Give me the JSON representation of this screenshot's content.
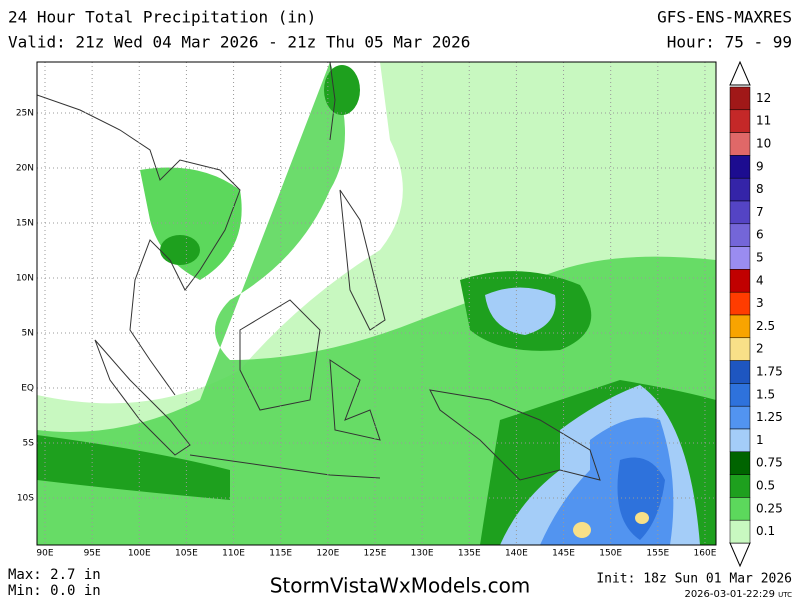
{
  "header": {
    "title": "24 Hour Total Precipitation (in)",
    "valid": "Valid: 21z Wed 04 Mar 2026 - 21z Thu 05 Mar 2026",
    "model": "GFS-ENS-MAXRES",
    "hours": "Hour: 75 - 99"
  },
  "map": {
    "lat_labels": [
      "25N",
      "20N",
      "15N",
      "10N",
      "5N",
      "EQ",
      "5S",
      "10S"
    ],
    "lon_labels": [
      "90E",
      "95E",
      "100E",
      "105E",
      "110E",
      "115E",
      "120E",
      "125E",
      "130E",
      "135E",
      "140E",
      "145E",
      "150E",
      "155E",
      "160E"
    ]
  },
  "legend": {
    "items": [
      {
        "label": "12",
        "color": "#a01818"
      },
      {
        "label": "11",
        "color": "#c42828"
      },
      {
        "label": "10",
        "color": "#e06868"
      },
      {
        "label": "9",
        "color": "#1c0c90"
      },
      {
        "label": "8",
        "color": "#3424a8"
      },
      {
        "label": "7",
        "color": "#5444c4"
      },
      {
        "label": "6",
        "color": "#7466d8"
      },
      {
        "label": "5",
        "color": "#9a8cf0"
      },
      {
        "label": "4",
        "color": "#c00000"
      },
      {
        "label": "3",
        "color": "#ff3c00"
      },
      {
        "label": "2.5",
        "color": "#f8a400"
      },
      {
        "label": "2",
        "color": "#f8e088"
      },
      {
        "label": "1.75",
        "color": "#1e56c0"
      },
      {
        "label": "1.5",
        "color": "#2e72dc"
      },
      {
        "label": "1.25",
        "color": "#5294f0"
      },
      {
        "label": "1",
        "color": "#a4cdf8"
      },
      {
        "label": "0.75",
        "color": "#006400"
      },
      {
        "label": "0.5",
        "color": "#1ea01e"
      },
      {
        "label": "0.25",
        "color": "#5cd85c"
      },
      {
        "label": "0.1",
        "color": "#c8f8c0"
      }
    ]
  },
  "footer": {
    "max": "Max: 2.7 in",
    "min": "Min: 0.0 in",
    "site": "StormVistaWxModels.com",
    "init": "Init: 18z Sun 01 Mar 2026",
    "stamp": "2026-03-01-22:29",
    "utc": "UTC"
  }
}
